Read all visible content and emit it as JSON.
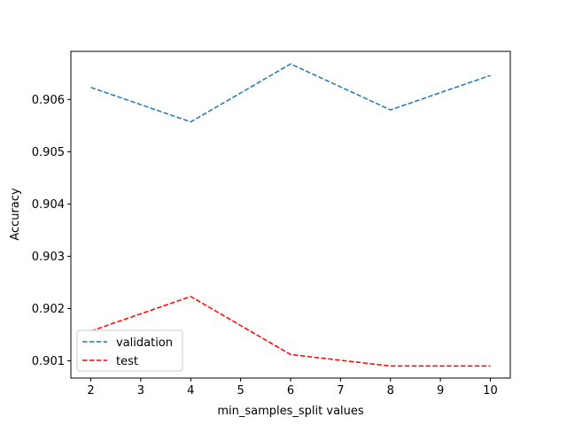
{
  "chart_data": {
    "type": "line",
    "title": "",
    "xlabel": "min_samples_split values",
    "ylabel": "Accuracy",
    "x": [
      2,
      4,
      6,
      8,
      10
    ],
    "xticks": [
      2,
      3,
      4,
      5,
      6,
      7,
      8,
      9,
      10
    ],
    "yticks": [
      0.901,
      0.902,
      0.903,
      0.904,
      0.905,
      0.906
    ],
    "ytick_labels": [
      "0.901",
      "0.902",
      "0.903",
      "0.904",
      "0.905",
      "0.906"
    ],
    "xlim": [
      1.6,
      10.4
    ],
    "ylim": [
      0.90067,
      0.90692
    ],
    "grid": false,
    "legend_position": "lower-left",
    "series": [
      {
        "name": "validation",
        "color": "#1f77b4",
        "dash": "dashed",
        "values": [
          0.90623,
          0.90557,
          0.90668,
          0.9058,
          0.90646
        ]
      },
      {
        "name": "test",
        "color": "#ff0000",
        "dash": "dashed",
        "values": [
          0.90157,
          0.90223,
          0.90112,
          0.9009,
          0.9009
        ]
      }
    ]
  }
}
